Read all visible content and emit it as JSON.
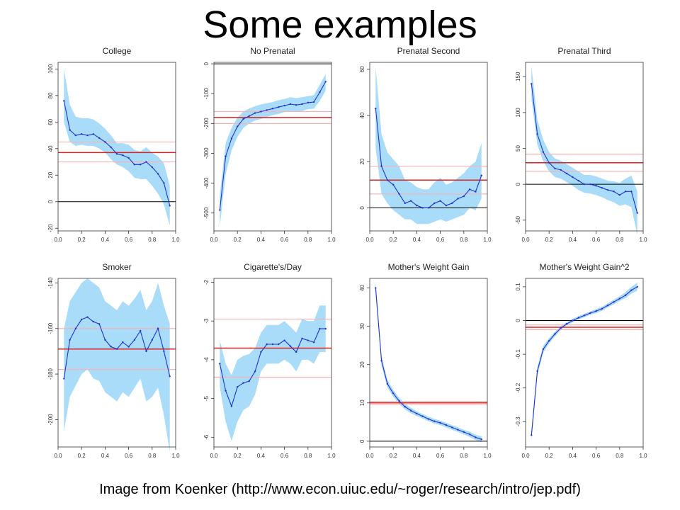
{
  "slide": {
    "title": "Some examples",
    "caption": "Image from Koenker (http://www.econ.uiuc.edu/~roger/research/intro/jep.pdf)"
  },
  "colors": {
    "band": "#a8dcf8",
    "line": "#2233cc",
    "ols": "#dd2222",
    "ols_ci": "#f4b4b4",
    "zero": "#000000"
  },
  "chart_data": [
    {
      "type": "line",
      "title": "College",
      "x": [
        0.05,
        0.1,
        0.15,
        0.2,
        0.25,
        0.3,
        0.35,
        0.4,
        0.45,
        0.5,
        0.55,
        0.6,
        0.65,
        0.7,
        0.75,
        0.8,
        0.85,
        0.9,
        0.95
      ],
      "series": [
        {
          "values": [
            76,
            54,
            50,
            51,
            50,
            51,
            48,
            45,
            41,
            36,
            35,
            33,
            28,
            28,
            30,
            26,
            21,
            14,
            -3
          ],
          "lower": [
            60,
            45,
            42,
            43,
            42,
            42,
            40,
            37,
            32,
            28,
            26,
            23,
            18,
            17,
            17,
            12,
            6,
            -2,
            -18
          ],
          "upper": [
            100,
            73,
            64,
            63,
            63,
            62,
            59,
            55,
            50,
            44,
            44,
            43,
            39,
            38,
            41,
            37,
            34,
            29,
            12
          ]
        }
      ],
      "ols": 37,
      "ols_ci": [
        30,
        45
      ],
      "ylim": [
        -22,
        105
      ],
      "yticks": [
        -20,
        0,
        20,
        40,
        60,
        80,
        100
      ],
      "xlim": [
        0,
        1
      ],
      "xticks": [
        "0.0",
        "0.2",
        "0.4",
        "0.6",
        "0.8",
        "1.0"
      ]
    },
    {
      "type": "line",
      "title": "No Prenatal",
      "x": [
        0.05,
        0.1,
        0.15,
        0.2,
        0.25,
        0.3,
        0.35,
        0.4,
        0.45,
        0.5,
        0.55,
        0.6,
        0.65,
        0.7,
        0.75,
        0.8,
        0.85,
        0.9,
        0.95
      ],
      "series": [
        {
          "values": [
            -490,
            -310,
            -250,
            -210,
            -185,
            -175,
            -165,
            -160,
            -155,
            -150,
            -145,
            -140,
            -135,
            -138,
            -135,
            -130,
            -128,
            -95,
            -60
          ],
          "lower": [
            -545,
            -370,
            -290,
            -245,
            -215,
            -200,
            -190,
            -185,
            -178,
            -172,
            -168,
            -162,
            -158,
            -160,
            -158,
            -152,
            -150,
            -125,
            -90
          ],
          "upper": [
            -440,
            -265,
            -215,
            -180,
            -160,
            -150,
            -142,
            -136,
            -132,
            -128,
            -122,
            -118,
            -112,
            -115,
            -112,
            -108,
            -105,
            -70,
            -35
          ]
        }
      ],
      "ols": -180,
      "ols_ci": [
        -200,
        -160
      ],
      "ylim": [
        -560,
        5
      ],
      "yticks": [
        -500,
        -400,
        -300,
        -200,
        -100,
        0
      ],
      "xlim": [
        0,
        1
      ],
      "xticks": [
        "0.0",
        "0.2",
        "0.4",
        "0.6",
        "0.8",
        "1.0"
      ]
    },
    {
      "type": "line",
      "title": "Prenatal Second",
      "x": [
        0.05,
        0.1,
        0.15,
        0.2,
        0.25,
        0.3,
        0.35,
        0.4,
        0.45,
        0.5,
        0.55,
        0.6,
        0.65,
        0.7,
        0.75,
        0.8,
        0.85,
        0.9,
        0.95
      ],
      "series": [
        {
          "values": [
            43,
            18,
            12,
            10,
            6,
            2,
            3,
            1,
            0,
            0,
            2,
            3,
            1,
            2,
            4,
            5,
            8,
            7,
            14
          ],
          "lower": [
            26,
            6,
            2,
            -1,
            -3,
            -5,
            -5,
            -7,
            -7,
            -7,
            -6,
            -5,
            -6,
            -5,
            -4,
            -3,
            0,
            -1,
            4
          ],
          "upper": [
            61,
            32,
            24,
            21,
            18,
            12,
            11,
            9,
            8,
            8,
            11,
            13,
            10,
            11,
            13,
            15,
            18,
            20,
            28
          ]
        }
      ],
      "ols": 12,
      "ols_ci": [
        6,
        18
      ],
      "ylim": [
        -10,
        63
      ],
      "yticks": [
        0,
        20,
        40,
        60
      ],
      "xlim": [
        0,
        1
      ],
      "xticks": [
        "0.0",
        "0.2",
        "0.4",
        "0.6",
        "0.8",
        "1.0"
      ]
    },
    {
      "type": "line",
      "title": "Prenatal Third",
      "x": [
        0.05,
        0.1,
        0.15,
        0.2,
        0.25,
        0.3,
        0.35,
        0.4,
        0.45,
        0.5,
        0.55,
        0.6,
        0.65,
        0.7,
        0.75,
        0.8,
        0.85,
        0.9,
        0.95
      ],
      "series": [
        {
          "values": [
            140,
            70,
            45,
            30,
            22,
            20,
            15,
            10,
            5,
            0,
            0,
            -2,
            -5,
            -8,
            -10,
            -15,
            -10,
            -10,
            -40
          ],
          "lower": [
            120,
            55,
            32,
            18,
            10,
            8,
            3,
            -2,
            -8,
            -12,
            -13,
            -15,
            -18,
            -22,
            -25,
            -30,
            -28,
            -32,
            -70
          ],
          "upper": [
            165,
            90,
            62,
            45,
            36,
            33,
            28,
            23,
            18,
            13,
            13,
            11,
            8,
            5,
            4,
            2,
            8,
            12,
            -10
          ]
        }
      ],
      "ols": 30,
      "ols_ci": [
        18,
        42
      ],
      "ylim": [
        -65,
        170
      ],
      "yticks": [
        -50,
        0,
        50,
        100,
        150
      ],
      "xlim": [
        0,
        1
      ],
      "xticks": [
        "0.0",
        "0.2",
        "0.4",
        "0.6",
        "0.8",
        "1.0"
      ]
    },
    {
      "type": "line",
      "title": "Smoker",
      "x": [
        0.05,
        0.1,
        0.15,
        0.2,
        0.25,
        0.3,
        0.35,
        0.4,
        0.45,
        0.5,
        0.55,
        0.6,
        0.65,
        0.7,
        0.75,
        0.8,
        0.85,
        0.9,
        0.95
      ],
      "series": [
        {
          "values": [
            -182,
            -165,
            -160,
            -156,
            -155,
            -157,
            -158,
            -165,
            -168,
            -169,
            -166,
            -168,
            -165,
            -161,
            -170,
            -165,
            -160,
            -170,
            -181
          ],
          "lower": [
            -205,
            -190,
            -185,
            -180,
            -178,
            -182,
            -183,
            -188,
            -190,
            -192,
            -188,
            -190,
            -186,
            -182,
            -192,
            -190,
            -186,
            -198,
            -214
          ],
          "upper": [
            -160,
            -148,
            -144,
            -140,
            -138,
            -140,
            -142,
            -148,
            -150,
            -152,
            -148,
            -150,
            -147,
            -143,
            -152,
            -148,
            -140,
            -150,
            -158
          ]
        }
      ],
      "ols": -169,
      "ols_ci": [
        -178,
        -160
      ],
      "ylim": [
        -212,
        -138
      ],
      "yticks": [
        -200,
        -180,
        -160,
        -140
      ],
      "xlim": [
        0,
        1
      ],
      "xticks": [
        "0.0",
        "0.2",
        "0.4",
        "0.6",
        "0.8",
        "1.0"
      ]
    },
    {
      "type": "line",
      "title": "Cigarette's/Day",
      "x": [
        0.05,
        0.1,
        0.15,
        0.2,
        0.25,
        0.3,
        0.35,
        0.4,
        0.45,
        0.5,
        0.55,
        0.6,
        0.65,
        0.7,
        0.75,
        0.8,
        0.85,
        0.9,
        0.95
      ],
      "series": [
        {
          "values": [
            -4.1,
            -4.8,
            -5.2,
            -4.7,
            -4.6,
            -4.55,
            -4.3,
            -3.8,
            -3.6,
            -3.6,
            -3.6,
            -3.5,
            -3.65,
            -3.8,
            -3.45,
            -3.5,
            -3.55,
            -3.2,
            -3.2
          ],
          "lower": [
            -4.7,
            -5.6,
            -6.1,
            -5.6,
            -5.3,
            -5.2,
            -4.9,
            -4.3,
            -4.1,
            -4.1,
            -4.1,
            -4.0,
            -4.1,
            -4.3,
            -4.0,
            -4.0,
            -4.1,
            -3.8,
            -3.8
          ],
          "upper": [
            -3.5,
            -4.1,
            -4.4,
            -4.0,
            -3.9,
            -3.85,
            -3.7,
            -3.3,
            -3.1,
            -3.1,
            -3.1,
            -3.0,
            -3.15,
            -3.3,
            -2.95,
            -3.0,
            -3.0,
            -2.6,
            -2.6
          ]
        }
      ],
      "ols": -3.7,
      "ols_ci": [
        -4.45,
        -2.95
      ],
      "ylim": [
        -6.25,
        -1.9
      ],
      "yticks": [
        -6,
        -5,
        -4,
        -3,
        -2
      ],
      "xlim": [
        0,
        1
      ],
      "xticks": [
        "0.0",
        "0.2",
        "0.4",
        "0.6",
        "0.8",
        "1.0"
      ]
    },
    {
      "type": "line",
      "title": "Mother's Weight Gain",
      "x": [
        0.05,
        0.1,
        0.15,
        0.2,
        0.25,
        0.3,
        0.35,
        0.4,
        0.45,
        0.5,
        0.55,
        0.6,
        0.65,
        0.7,
        0.75,
        0.8,
        0.85,
        0.9,
        0.95
      ],
      "series": [
        {
          "values": [
            40,
            21,
            15,
            12.5,
            10.5,
            9,
            8,
            7.2,
            6.5,
            5.8,
            5.2,
            4.8,
            4.2,
            3.6,
            3.0,
            2.4,
            1.8,
            1.0,
            0.5
          ],
          "lower": [
            38.5,
            19.8,
            14,
            11.6,
            9.7,
            8.3,
            7.3,
            6.6,
            5.9,
            5.2,
            4.6,
            4.2,
            3.6,
            3.0,
            2.4,
            1.8,
            1.1,
            0.3,
            -0.3
          ],
          "upper": [
            41.5,
            22.2,
            16,
            13.4,
            11.3,
            9.7,
            8.7,
            7.8,
            7.1,
            6.4,
            5.8,
            5.4,
            4.8,
            4.2,
            3.6,
            3.0,
            2.5,
            1.7,
            1.3
          ]
        }
      ],
      "ols": 10,
      "ols_ci": [
        9.6,
        10.4
      ],
      "ylim": [
        -1.5,
        42.5
      ],
      "yticks": [
        0,
        10,
        20,
        30,
        40
      ],
      "xlim": [
        0,
        1
      ],
      "xticks": [
        "0.0",
        "0.2",
        "0.4",
        "0.6",
        "0.8",
        "1.0"
      ]
    },
    {
      "type": "line",
      "title": "Mother's Weight Gain^2",
      "x": [
        0.05,
        0.1,
        0.15,
        0.2,
        0.25,
        0.3,
        0.35,
        0.4,
        0.45,
        0.5,
        0.55,
        0.6,
        0.65,
        0.7,
        0.75,
        0.8,
        0.85,
        0.9,
        0.95
      ],
      "series": [
        {
          "values": [
            -0.34,
            -0.15,
            -0.085,
            -0.06,
            -0.04,
            -0.022,
            -0.01,
            0.0,
            0.008,
            0.015,
            0.022,
            0.028,
            0.035,
            0.045,
            0.055,
            0.065,
            0.075,
            0.09,
            0.1
          ],
          "lower": [
            -0.355,
            -0.162,
            -0.095,
            -0.068,
            -0.047,
            -0.028,
            -0.015,
            -0.005,
            0.003,
            0.01,
            0.017,
            0.022,
            0.029,
            0.039,
            0.048,
            0.058,
            0.066,
            0.08,
            0.088
          ],
          "upper": [
            -0.325,
            -0.138,
            -0.075,
            -0.052,
            -0.033,
            -0.016,
            -0.005,
            0.005,
            0.013,
            0.02,
            0.027,
            0.034,
            0.041,
            0.051,
            0.062,
            0.072,
            0.084,
            0.1,
            0.112
          ]
        }
      ],
      "ols": -0.02,
      "ols_ci": [
        -0.027,
        -0.013
      ],
      "ylim": [
        -0.375,
        0.125
      ],
      "yticks": [
        -0.3,
        -0.2,
        -0.1,
        0.0,
        0.1
      ],
      "xlim": [
        0,
        1
      ],
      "xticks": [
        "0.0",
        "0.2",
        "0.4",
        "0.6",
        "0.8",
        "1.0"
      ]
    }
  ]
}
